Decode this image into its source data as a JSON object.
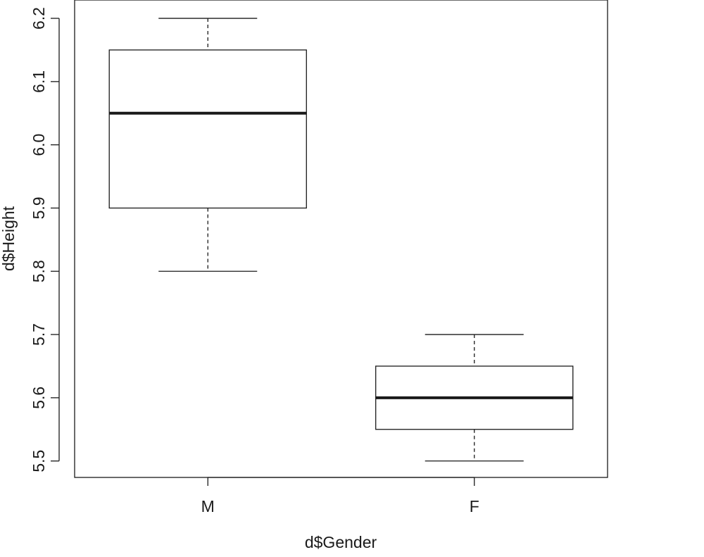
{
  "chart_data": {
    "type": "boxplot",
    "title": "",
    "xlabel": "d$Gender",
    "ylabel": "d$Height",
    "categories": [
      "M",
      "F"
    ],
    "boxes": [
      {
        "category": "M",
        "min": 5.8,
        "q1": 5.9,
        "median": 6.05,
        "q3": 6.15,
        "max": 6.2
      },
      {
        "category": "F",
        "min": 5.5,
        "q1": 5.55,
        "median": 5.6,
        "q3": 5.65,
        "max": 5.7
      }
    ],
    "yticks": [
      5.5,
      5.6,
      5.7,
      5.8,
      5.9,
      6.0,
      6.1,
      6.2
    ],
    "ytick_labels": [
      "5.5",
      "5.6",
      "5.7",
      "5.8",
      "5.9",
      "6.0",
      "6.1",
      "6.2"
    ],
    "ylim": [
      5.474,
      6.229
    ],
    "grid": false,
    "colors": {
      "stroke": "#1a1a1a",
      "background": "#ffffff"
    }
  }
}
